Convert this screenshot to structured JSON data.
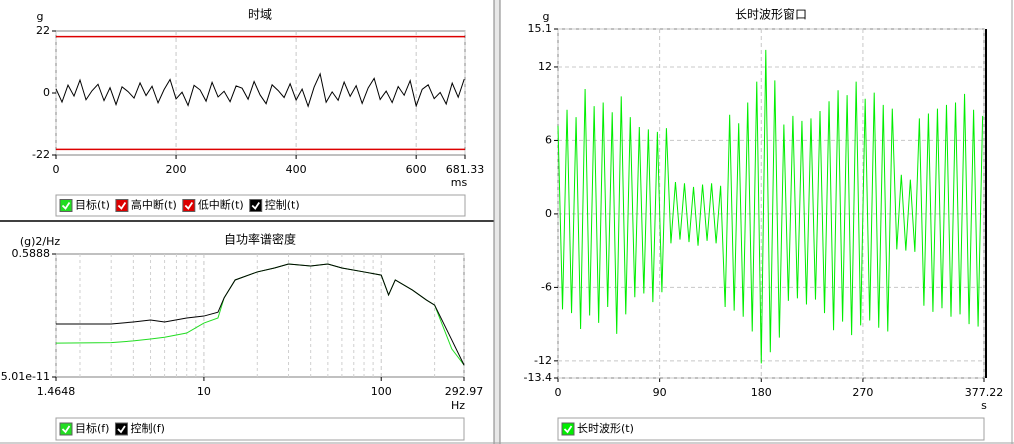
{
  "chart_data": [
    {
      "type": "line",
      "title": "时域",
      "y_label": "g",
      "x_unit": "ms",
      "xlim": [
        0,
        681.33
      ],
      "xticks": [
        0,
        200,
        400,
        600,
        681.33
      ],
      "ylim": [
        -22,
        22
      ],
      "yticks": [
        -22,
        0,
        22
      ],
      "grid": "x",
      "x": [
        0,
        10,
        20,
        30,
        40,
        50,
        60,
        70,
        80,
        90,
        100,
        110,
        120,
        130,
        140,
        150,
        160,
        170,
        180,
        190,
        200,
        210,
        220,
        230,
        240,
        250,
        260,
        270,
        280,
        290,
        300,
        310,
        320,
        330,
        340,
        350,
        360,
        370,
        380,
        390,
        400,
        410,
        420,
        430,
        440,
        450,
        460,
        470,
        480,
        490,
        500,
        510,
        520,
        530,
        540,
        550,
        560,
        570,
        580,
        590,
        600,
        610,
        620,
        630,
        640,
        650,
        660,
        670,
        680
      ],
      "series": [
        {
          "name": "目标(t)",
          "color": "#22dd22"
        },
        {
          "name": "高中断(t)",
          "color": "#dd0000",
          "value": 20
        },
        {
          "name": "低中断(t)",
          "color": "#dd0000",
          "value": -20
        },
        {
          "name": "控制(t)",
          "color": "#000000",
          "label_color": "#cc0000",
          "values": [
            1.5,
            -3.2,
            2.8,
            -1.1,
            4.6,
            -2.4,
            0.8,
            3.1,
            -2.7,
            1.9,
            -4.1,
            2.2,
            0.5,
            -1.8,
            3.6,
            -0.9,
            2.4,
            -3.5,
            1.2,
            4.8,
            -2.1,
            0.3,
            -4.4,
            2.7,
            1.1,
            -2.9,
            3.8,
            -1.4,
            0.6,
            -3.1,
            2.5,
            1.7,
            -2.2,
            4.1,
            -0.7,
            -3.8,
            2.9,
            0.9,
            -1.6,
            3.3,
            -2.5,
            1.4,
            -4.7,
            2.1,
            6.8,
            -3.3,
            0.4,
            -2.6,
            3.9,
            -1.2,
            2.6,
            -3.7,
            1.8,
            5.2,
            -2.3,
            0.7,
            -3.4,
            2.3,
            -0.8,
            4.4,
            -4.6,
            1.3,
            2.9,
            -2.0,
            0.2,
            -3.9,
            3.5,
            -1.5,
            4.9
          ]
        }
      ]
    },
    {
      "type": "line",
      "title": "自功率谱密度",
      "y_label": "(g)2/Hz",
      "x_unit": "Hz",
      "xscale": "log",
      "yscale": "log",
      "xlim": [
        1.4648,
        292.97
      ],
      "xticks": [
        1.4648,
        10,
        100,
        292.97
      ],
      "xminor": [
        2,
        3,
        4,
        5,
        6,
        7,
        8,
        9,
        20,
        30,
        40,
        50,
        60,
        70,
        80,
        90,
        200
      ],
      "ylim": [
        5.01e-11,
        0.5888
      ],
      "yticks": [
        5.01e-11,
        0.5888
      ],
      "grid": "x",
      "x": [
        1.4648,
        3,
        4,
        5,
        6,
        8,
        10,
        12,
        13,
        15,
        20,
        25,
        30,
        40,
        50,
        60,
        80,
        100,
        110,
        120,
        150,
        180,
        200,
        250,
        292.97
      ],
      "series": [
        {
          "name": "目标(f)",
          "color": "#22dd22",
          "values": [
            3e-08,
            3.3e-08,
            4.5e-08,
            6.5e-08,
            9e-08,
            2e-07,
            1.3e-06,
            3.4e-06,
            0.00015,
            0.0044,
            0.02,
            0.042,
            0.089,
            0.062,
            0.089,
            0.042,
            0.02,
            0.011,
            0.00026,
            0.0044,
            0.00066,
            0.0001,
            3.9e-05,
            1e-08,
            4.8e-10
          ]
        },
        {
          "name": "控制(f)",
          "color": "#000000",
          "label_color": "#cc0000",
          "values": [
            1.1e-06,
            1.1e-06,
            1.6e-06,
            2.3e-06,
            1.6e-06,
            3.4e-06,
            4.9e-06,
            1e-05,
            0.00015,
            0.0044,
            0.02,
            0.042,
            0.089,
            0.062,
            0.089,
            0.042,
            0.02,
            0.011,
            0.00026,
            0.0044,
            0.00066,
            0.0001,
            3.9e-05,
            5.4e-08,
            4.8e-10
          ]
        }
      ]
    },
    {
      "type": "line",
      "title": "长时波形窗口",
      "y_label": "g",
      "x_unit": "s",
      "xlim": [
        0,
        377.22
      ],
      "xticks": [
        0,
        90,
        180,
        270,
        377.22
      ],
      "ylim": [
        -13.4,
        15.1
      ],
      "yticks": [
        -13.4,
        -12,
        -6,
        0,
        6,
        12,
        15.1
      ],
      "grid": "both",
      "x": [
        0,
        4,
        8,
        12,
        16,
        20,
        24,
        28,
        32,
        36,
        40,
        44,
        48,
        52,
        56,
        60,
        64,
        68,
        72,
        76,
        80,
        84,
        88,
        92,
        96,
        100,
        104,
        108,
        112,
        116,
        120,
        124,
        128,
        132,
        136,
        140,
        144,
        148,
        152,
        156,
        160,
        164,
        168,
        172,
        176,
        180,
        184,
        188,
        192,
        196,
        200,
        204,
        208,
        212,
        216,
        220,
        224,
        228,
        232,
        236,
        240,
        244,
        248,
        252,
        256,
        260,
        264,
        268,
        272,
        276,
        280,
        284,
        288,
        292,
        296,
        300,
        304,
        308,
        312,
        316,
        320,
        324,
        328,
        332,
        336,
        340,
        344,
        348,
        352,
        356,
        360,
        364,
        368,
        372,
        376
      ],
      "series": [
        {
          "name": "长时波形(t)",
          "color": "#00ee00",
          "label_color": "#cc0000",
          "values": [
            7.2,
            -7.8,
            8.5,
            -8.1,
            7.9,
            -9.4,
            10.2,
            -8.3,
            8.8,
            -8.9,
            9.1,
            -7.6,
            8.3,
            -9.8,
            9.6,
            -8.2,
            7.9,
            -6.8,
            7.1,
            -6.5,
            6.9,
            -7.2,
            6.7,
            -6.4,
            7.0,
            -2.4,
            2.6,
            -2.1,
            2.5,
            -2.3,
            2.2,
            -2.6,
            2.4,
            -2.2,
            2.5,
            -2.4,
            2.3,
            -7.6,
            8.1,
            -7.9,
            7.4,
            -8.4,
            9.1,
            -9.6,
            10.8,
            -12.2,
            13.4,
            -11.3,
            10.9,
            -10.1,
            7.3,
            -7.1,
            8.0,
            -6.9,
            7.6,
            -7.4,
            7.8,
            -7.0,
            8.4,
            -8.1,
            9.2,
            -9.5,
            10.1,
            -8.8,
            9.7,
            -9.9,
            10.8,
            -9.1,
            9.4,
            -8.7,
            9.9,
            -9.3,
            8.9,
            -9.6,
            8.6,
            -2.9,
            3.2,
            -3.0,
            2.8,
            -3.1,
            7.8,
            -7.5,
            8.2,
            -8.0,
            8.6,
            -7.7,
            8.9,
            -8.4,
            9.1,
            -8.2,
            9.8,
            -9.0,
            8.5,
            -9.2,
            8.0
          ]
        }
      ]
    }
  ]
}
